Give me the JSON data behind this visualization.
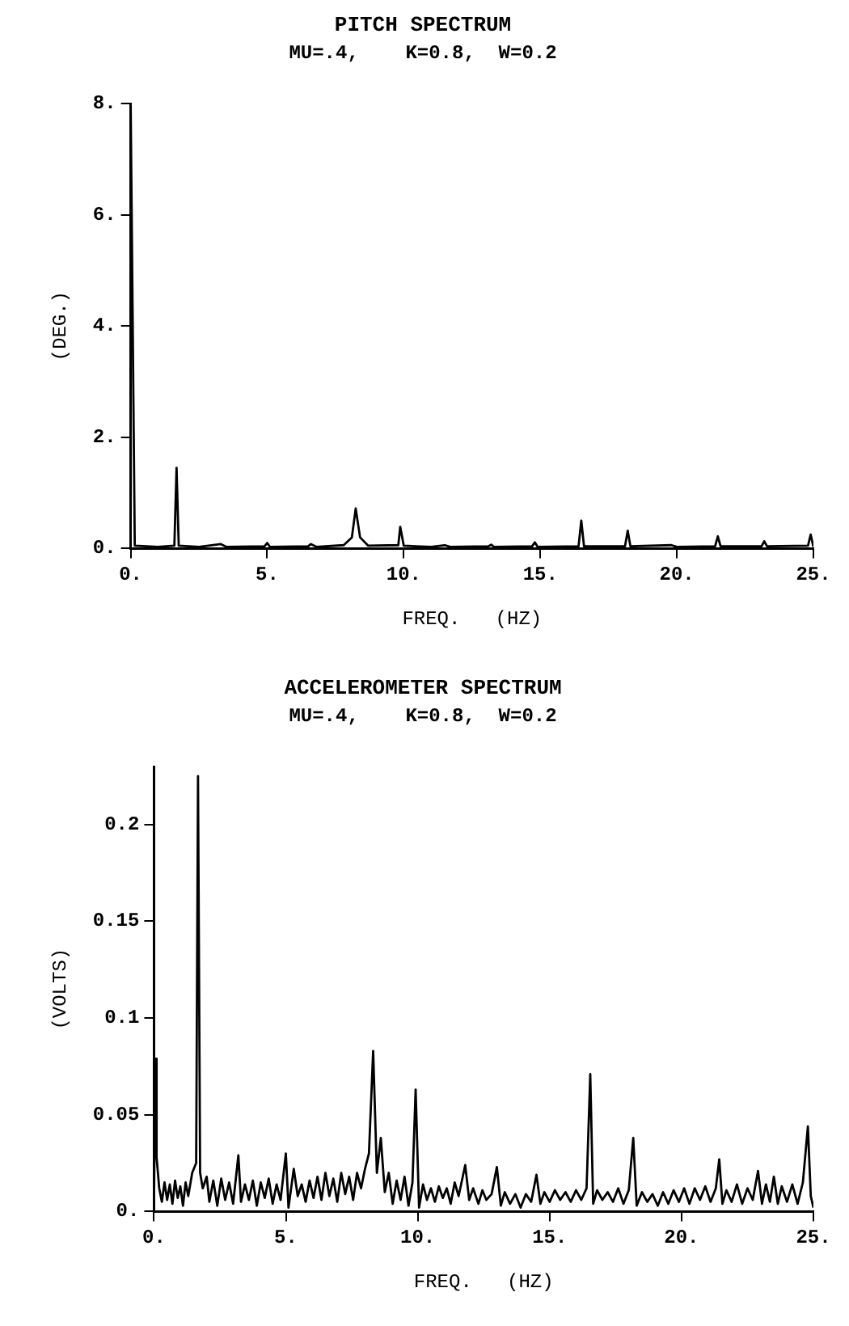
{
  "chart_data": [
    {
      "type": "line",
      "title": "PITCH SPECTRUM",
      "subtitle": "MU=.4,    K=0.8,  W=0.2",
      "xlabel": "FREQ.   (HZ)",
      "ylabel": "(DEG.)",
      "marker": "none",
      "grid": false,
      "legend": false,
      "xlim": [
        0,
        25
      ],
      "xticks": [
        {
          "value": 0,
          "label": "0."
        },
        {
          "value": 5,
          "label": "5."
        },
        {
          "value": 10,
          "label": "10."
        },
        {
          "value": 15,
          "label": "15."
        },
        {
          "value": 20,
          "label": "20."
        },
        {
          "value": 25,
          "label": "25."
        }
      ],
      "ylim": [
        0,
        8
      ],
      "yticks": [
        {
          "value": 0,
          "label": "0."
        },
        {
          "value": 2,
          "label": "2."
        },
        {
          "value": 4,
          "label": "4."
        },
        {
          "value": 6,
          "label": "6."
        },
        {
          "value": 8,
          "label": "8."
        }
      ],
      "series": [
        {
          "color": "#000000",
          "x": [
            0,
            0.15,
            1.0,
            1.6,
            1.68,
            1.76,
            2.5,
            3.3,
            3.5,
            4.9,
            5.0,
            5.1,
            6.5,
            6.6,
            6.8,
            7.8,
            8.1,
            8.24,
            8.4,
            8.7,
            9.8,
            9.87,
            10.0,
            11.0,
            11.5,
            11.7,
            13.1,
            13.2,
            13.3,
            14.7,
            14.8,
            14.9,
            16.4,
            16.5,
            16.6,
            18.1,
            18.2,
            18.3,
            19.8,
            20,
            21.4,
            21.5,
            21.6,
            23.1,
            23.2,
            23.3,
            24.8,
            24.9,
            25
          ],
          "values": [
            8,
            0.05,
            0.03,
            0.05,
            1.45,
            0.05,
            0.03,
            0.08,
            0.03,
            0.04,
            0.1,
            0.03,
            0.04,
            0.08,
            0.03,
            0.06,
            0.2,
            0.72,
            0.2,
            0.05,
            0.06,
            0.39,
            0.05,
            0.03,
            0.06,
            0.03,
            0.04,
            0.07,
            0.03,
            0.04,
            0.11,
            0.03,
            0.04,
            0.5,
            0.04,
            0.04,
            0.32,
            0.04,
            0.06,
            0.03,
            0.04,
            0.22,
            0.04,
            0.04,
            0.13,
            0.04,
            0.05,
            0.25,
            0.03
          ]
        }
      ]
    },
    {
      "type": "line",
      "title": "ACCELEROMETER SPECTRUM",
      "subtitle": "MU=.4,    K=0.8,  W=0.2",
      "xlabel": "FREQ.   (HZ)",
      "ylabel": "(VOLTS)",
      "marker": "none",
      "grid": false,
      "legend": false,
      "xlim": [
        0,
        25
      ],
      "xticks": [
        {
          "value": 0,
          "label": "0."
        },
        {
          "value": 5,
          "label": "5."
        },
        {
          "value": 10,
          "label": "10."
        },
        {
          "value": 15,
          "label": "15."
        },
        {
          "value": 20,
          "label": "20."
        },
        {
          "value": 25,
          "label": "25."
        }
      ],
      "ylim": [
        0,
        0.23
      ],
      "yticks": [
        {
          "value": 0,
          "label": "0."
        },
        0.05,
        0.1,
        0.15,
        0.2
      ],
      "series": [
        {
          "color": "#000000",
          "x": [
            0,
            0.05,
            0.1,
            0.2,
            0.3,
            0.4,
            0.5,
            0.6,
            0.7,
            0.8,
            0.9,
            1.0,
            1.1,
            1.2,
            1.3,
            1.45,
            1.6,
            1.67,
            1.75,
            1.85,
            2.0,
            2.1,
            2.25,
            2.4,
            2.55,
            2.7,
            2.85,
            3.0,
            3.2,
            3.3,
            3.45,
            3.6,
            3.75,
            3.9,
            4.05,
            4.2,
            4.35,
            4.5,
            4.65,
            4.8,
            5.0,
            5.1,
            5.3,
            5.45,
            5.6,
            5.75,
            5.9,
            6.05,
            6.2,
            6.35,
            6.5,
            6.65,
            6.8,
            6.95,
            7.1,
            7.25,
            7.4,
            7.55,
            7.7,
            7.85,
            8.0,
            8.15,
            8.31,
            8.45,
            8.6,
            8.75,
            8.9,
            9.05,
            9.2,
            9.35,
            9.5,
            9.65,
            9.8,
            9.92,
            10.05,
            10.2,
            10.35,
            10.5,
            10.65,
            10.8,
            10.95,
            11.1,
            11.25,
            11.4,
            11.55,
            11.8,
            11.95,
            12.1,
            12.3,
            12.45,
            12.6,
            12.8,
            13.0,
            13.15,
            13.3,
            13.5,
            13.7,
            13.9,
            14.1,
            14.3,
            14.5,
            14.65,
            14.8,
            15.0,
            15.2,
            15.4,
            15.6,
            15.8,
            16.0,
            16.2,
            16.4,
            16.54,
            16.65,
            16.8,
            17.0,
            17.2,
            17.4,
            17.6,
            17.8,
            18.0,
            18.17,
            18.3,
            18.5,
            18.7,
            18.9,
            19.1,
            19.3,
            19.5,
            19.7,
            19.9,
            20.1,
            20.3,
            20.5,
            20.7,
            20.9,
            21.1,
            21.3,
            21.43,
            21.55,
            21.7,
            21.9,
            22.1,
            22.3,
            22.5,
            22.7,
            22.9,
            23.05,
            23.2,
            23.35,
            23.5,
            23.65,
            23.8,
            24.0,
            24.2,
            24.4,
            24.6,
            24.79,
            24.9,
            25.0
          ],
          "values": [
            0.002,
            0.079,
            0.028,
            0.012,
            0.005,
            0.015,
            0.006,
            0.014,
            0.004,
            0.016,
            0.007,
            0.013,
            0.003,
            0.015,
            0.008,
            0.02,
            0.025,
            0.225,
            0.02,
            0.012,
            0.018,
            0.005,
            0.016,
            0.003,
            0.017,
            0.006,
            0.015,
            0.004,
            0.029,
            0.005,
            0.014,
            0.006,
            0.016,
            0.003,
            0.015,
            0.007,
            0.017,
            0.004,
            0.014,
            0.006,
            0.03,
            0.002,
            0.022,
            0.008,
            0.014,
            0.005,
            0.016,
            0.007,
            0.018,
            0.006,
            0.02,
            0.008,
            0.017,
            0.005,
            0.02,
            0.009,
            0.018,
            0.006,
            0.02,
            0.012,
            0.022,
            0.03,
            0.083,
            0.02,
            0.038,
            0.01,
            0.02,
            0.004,
            0.016,
            0.006,
            0.018,
            0.003,
            0.015,
            0.063,
            0.002,
            0.014,
            0.006,
            0.012,
            0.005,
            0.013,
            0.007,
            0.012,
            0.004,
            0.015,
            0.008,
            0.024,
            0.006,
            0.012,
            0.004,
            0.011,
            0.006,
            0.009,
            0.023,
            0.003,
            0.01,
            0.004,
            0.009,
            0.002,
            0.009,
            0.005,
            0.019,
            0.004,
            0.01,
            0.005,
            0.011,
            0.006,
            0.01,
            0.005,
            0.011,
            0.006,
            0.012,
            0.071,
            0.004,
            0.011,
            0.006,
            0.01,
            0.005,
            0.012,
            0.004,
            0.011,
            0.038,
            0.003,
            0.01,
            0.005,
            0.009,
            0.003,
            0.01,
            0.004,
            0.011,
            0.005,
            0.012,
            0.004,
            0.012,
            0.006,
            0.013,
            0.005,
            0.012,
            0.027,
            0.004,
            0.011,
            0.005,
            0.014,
            0.004,
            0.012,
            0.006,
            0.021,
            0.004,
            0.014,
            0.005,
            0.018,
            0.004,
            0.013,
            0.005,
            0.014,
            0.004,
            0.015,
            0.044,
            0.008,
            0.002
          ]
        }
      ]
    }
  ]
}
